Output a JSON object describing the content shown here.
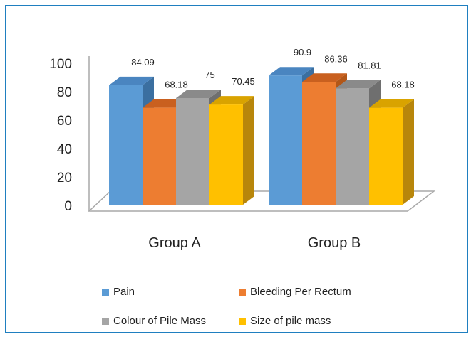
{
  "chart_data": {
    "type": "bar",
    "style": "3d-clustered",
    "categories": [
      "Group A",
      "Group B"
    ],
    "series": [
      {
        "name": "Pain",
        "values": [
          84.09,
          90.9
        ],
        "labels": [
          "84.09",
          "90.9"
        ],
        "color": "#5b9bd5",
        "side_color": "#3b6fa0",
        "top_color": "#4a85c0"
      },
      {
        "name": "Bleeding Per Rectum",
        "values": [
          68.18,
          86.36
        ],
        "labels": [
          "68.18",
          "86.36"
        ],
        "color": "#ed7d31",
        "side_color": "#b35718",
        "top_color": "#c9601f"
      },
      {
        "name": "Colour of Pile Mass",
        "values": [
          75,
          81.81
        ],
        "labels": [
          "75",
          "81.81"
        ],
        "color": "#a5a5a5",
        "side_color": "#6f6f6f",
        "top_color": "#8a8a8a"
      },
      {
        "name": "Size of pile mass",
        "values": [
          70.45,
          68.18
        ],
        "labels": [
          "70.45",
          "68.18"
        ],
        "color": "#ffc000",
        "side_color": "#b8860b",
        "top_color": "#d9a300"
      }
    ],
    "yticks": [
      "0",
      "20",
      "40",
      "60",
      "80",
      "100"
    ],
    "ylim": [
      0,
      100
    ],
    "grid": false,
    "legend_position": "bottom",
    "border_color": "#1f7fc0"
  }
}
